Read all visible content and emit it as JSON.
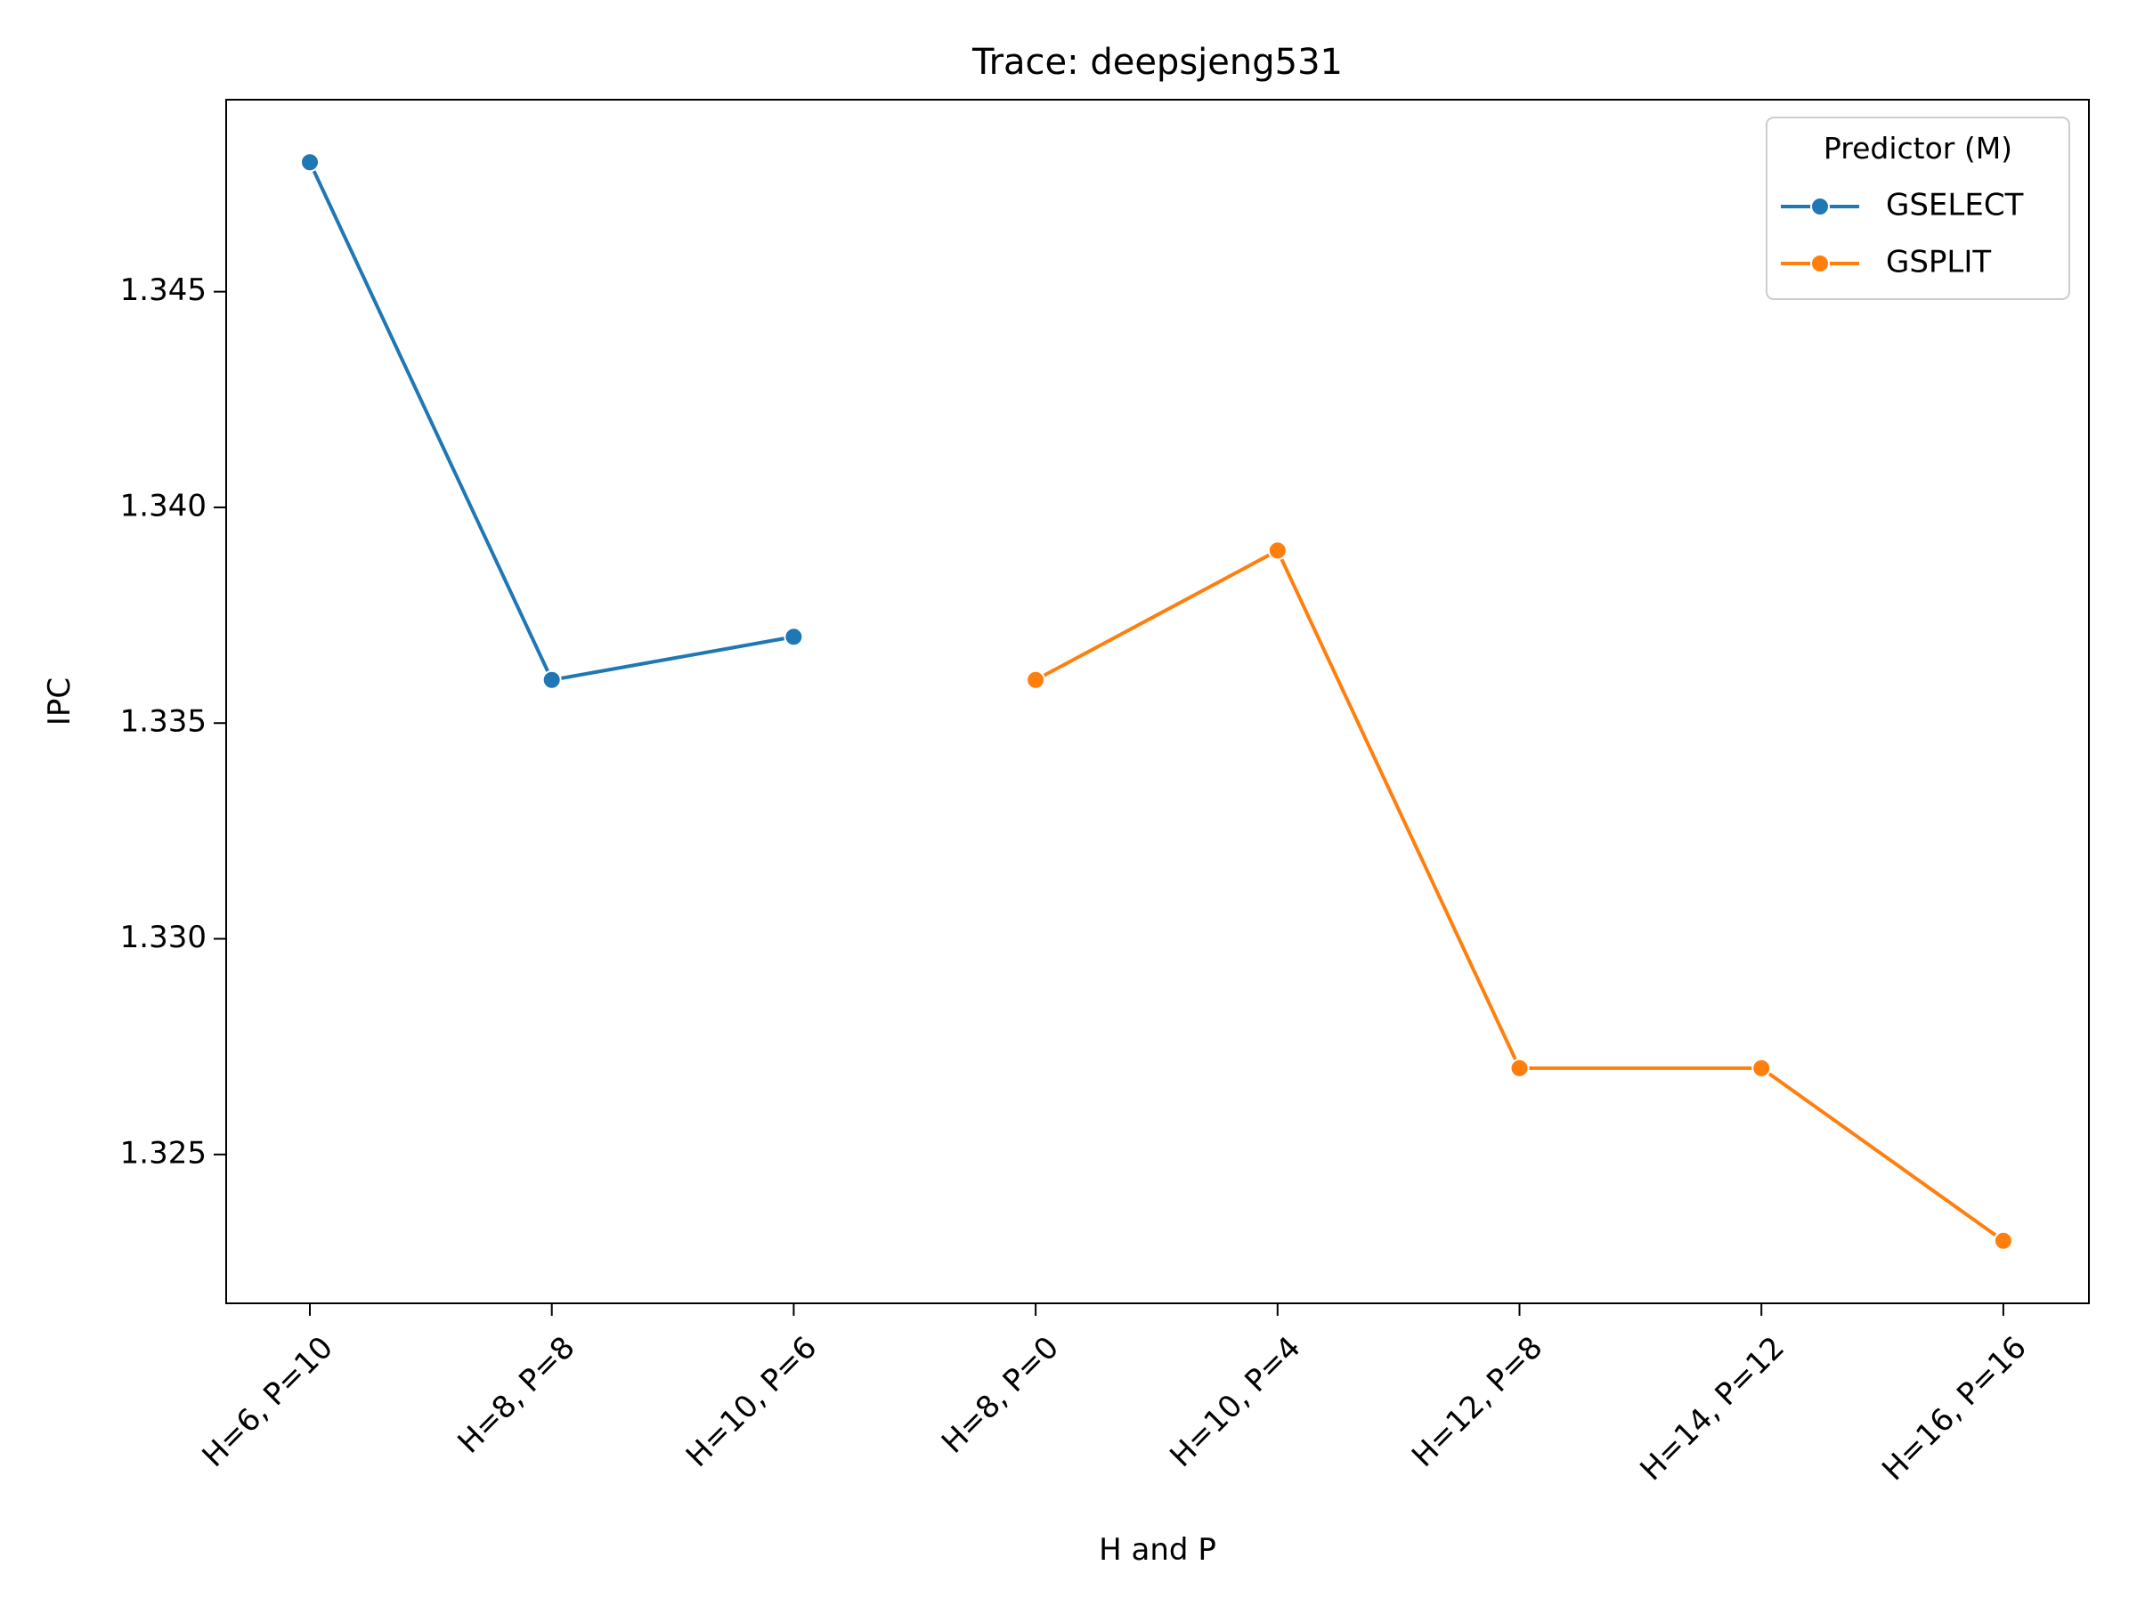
{
  "chart_data": {
    "type": "line",
    "title": "Trace: deepsjeng531",
    "xlabel": "H and P",
    "ylabel": "IPC",
    "categories": [
      "H=6, P=10",
      "H=8, P=8",
      "H=10, P=6",
      "H=8, P=0",
      "H=10, P=4",
      "H=12, P=8",
      "H=14, P=12",
      "H=16, P=16"
    ],
    "ylim": [
      1.32155,
      1.34945
    ],
    "yticks": [
      "1.325",
      "1.330",
      "1.335",
      "1.340",
      "1.345"
    ],
    "ytick_values": [
      1.325,
      1.33,
      1.335,
      1.34,
      1.345
    ],
    "grid": false,
    "legend": {
      "title": "Predictor (M)",
      "placement": "top-right"
    },
    "series": [
      {
        "name": "GSELECT",
        "color": "#1f77b4",
        "points": [
          {
            "x": "H=6, P=10",
            "y": 1.348
          },
          {
            "x": "H=8, P=8",
            "y": 1.336
          },
          {
            "x": "H=10, P=6",
            "y": 1.337
          }
        ]
      },
      {
        "name": "GSPLIT",
        "color": "#ff7f0e",
        "points": [
          {
            "x": "H=8, P=0",
            "y": 1.336
          },
          {
            "x": "H=10, P=4",
            "y": 1.339
          },
          {
            "x": "H=12, P=8",
            "y": 1.327
          },
          {
            "x": "H=14, P=12",
            "y": 1.327
          },
          {
            "x": "H=16, P=16",
            "y": 1.323
          }
        ]
      }
    ]
  }
}
